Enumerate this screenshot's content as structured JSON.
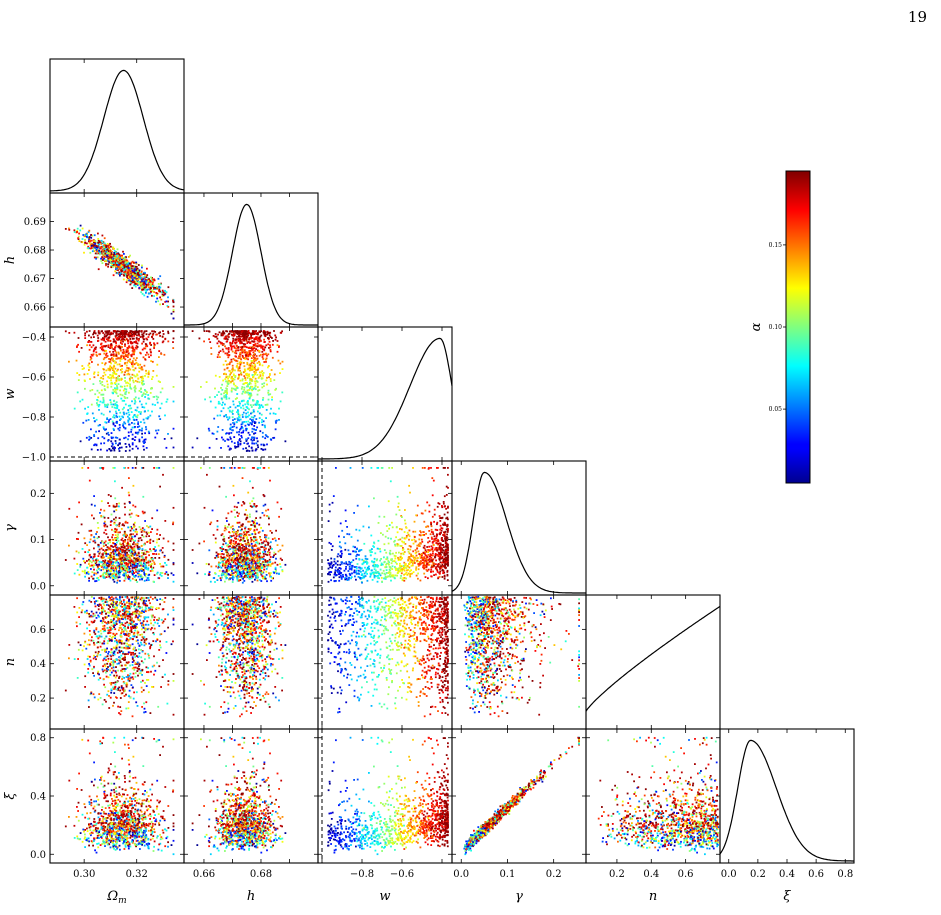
{
  "page_number": "19",
  "chart_data": {
    "type": "scatter",
    "title": "",
    "parameters": [
      {
        "name": "Omega_m",
        "label": "Ω",
        "label_sub": "m",
        "range": [
          0.287,
          0.338
        ],
        "ticks": [
          0.3,
          0.32
        ],
        "tick_labels": [
          "0.30",
          "0.32"
        ],
        "peak": 0.315,
        "width": 0.0075
      },
      {
        "name": "h",
        "label": "h",
        "label_sub": "",
        "range": [
          0.653,
          0.7
        ],
        "ticks": [
          0.66,
          0.67,
          0.68,
          0.69
        ],
        "tick_labels": [
          "0.66",
          "0.67",
          "0.68",
          "0.69"
        ],
        "tick_labels_x": [
          "0.66",
          "",
          "0.68",
          ""
        ],
        "peak": 0.675,
        "width": 0.005
      },
      {
        "name": "w",
        "label": "w",
        "label_sub": "",
        "range": [
          -1.02,
          -0.35
        ],
        "ticks": [
          -1.0,
          -0.8,
          -0.6,
          -0.4
        ],
        "tick_labels": [
          "−1.0",
          "−0.8",
          "−0.6",
          "−0.4"
        ],
        "tick_labels_x": [
          "",
          "−0.8",
          "−0.6",
          ""
        ],
        "peak": -0.41,
        "width": 0.17
      },
      {
        "name": "gamma",
        "label": "γ",
        "label_sub": "",
        "range": [
          -0.02,
          0.27
        ],
        "ticks": [
          0.0,
          0.1,
          0.2
        ],
        "tick_labels": [
          "0.0",
          "0.1",
          "0.2"
        ],
        "peak": 0.05,
        "width": 0.03
      },
      {
        "name": "n",
        "label": "n",
        "label_sub": "",
        "range": [
          0.02,
          0.8
        ],
        "ticks": [
          0.2,
          0.4,
          0.6
        ],
        "tick_labels": [
          "0.2",
          "0.4",
          "0.6"
        ],
        "peak": 0.78,
        "width": 0.3
      },
      {
        "name": "xi",
        "label": "ξ",
        "label_sub": "",
        "range": [
          -0.06,
          0.86
        ],
        "ticks": [
          0.0,
          0.4,
          0.8
        ],
        "tick_labels": [
          "0.0",
          "0.4",
          "0.8"
        ],
        "tick_labels_x": [
          "0.0",
          "0.2",
          "0.4",
          "0.6",
          "0.8"
        ],
        "ticks_x": [
          0.0,
          0.2,
          0.4,
          0.6,
          0.8
        ],
        "peak": 0.15,
        "width": 0.11
      }
    ],
    "reference_line": {
      "parameter": "w",
      "value": -1.0,
      "style": "dashed"
    },
    "colorbar": {
      "label": "α",
      "range": [
        0.005,
        0.195
      ],
      "ticks": [
        0.05,
        0.1,
        0.15
      ],
      "tick_labels": [
        "0.05",
        "0.10",
        "0.15"
      ],
      "colormap": "jet"
    },
    "sample_count": 1100
  }
}
